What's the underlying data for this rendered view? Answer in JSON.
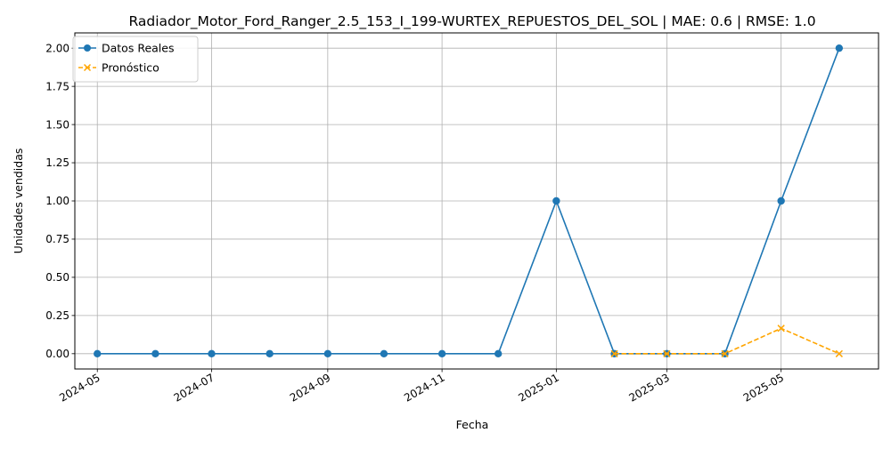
{
  "chart_data": {
    "type": "line",
    "title": "Radiador_Motor_Ford_Ranger_2.5_153_I_199-WURTEX_REPUESTOS_DEL_SOL | MAE: 0.6 | RMSE: 1.0",
    "xlabel": "Fecha",
    "ylabel": "Unidades vendidas",
    "x_type": "date",
    "xlim": [
      "2024-04-19",
      "2025-06-22"
    ],
    "ylim": [
      -0.1,
      2.1
    ],
    "x_ticks": [
      "2024-05-01",
      "2024-07-01",
      "2024-09-01",
      "2024-11-01",
      "2025-01-01",
      "2025-03-01",
      "2025-05-01"
    ],
    "x_tick_labels": [
      "2024-05",
      "2024-07",
      "2024-09",
      "2024-11",
      "2025-01",
      "2025-03",
      "2025-05"
    ],
    "y_ticks": [
      0,
      0.25,
      0.5,
      0.75,
      1.0,
      1.25,
      1.5,
      1.75,
      2.0
    ],
    "y_tick_labels": [
      "0.00",
      "0.25",
      "0.50",
      "0.75",
      "1.00",
      "1.25",
      "1.50",
      "1.75",
      "2.00"
    ],
    "grid": true,
    "legend_position": "top-left",
    "series": [
      {
        "name": "Datos Reales",
        "color": "#1f77b4",
        "line_style": "solid",
        "marker": "circle",
        "x": [
          "2024-05-01",
          "2024-06-01",
          "2024-07-01",
          "2024-08-01",
          "2024-09-01",
          "2024-10-01",
          "2024-11-01",
          "2024-12-01",
          "2025-01-01",
          "2025-02-01",
          "2025-03-01",
          "2025-04-01",
          "2025-05-01",
          "2025-06-01"
        ],
        "values": [
          0,
          0,
          0,
          0,
          0,
          0,
          0,
          0,
          1,
          0,
          0,
          0,
          1,
          2
        ]
      },
      {
        "name": "Pronóstico",
        "color": "#ffa500",
        "line_style": "dashed",
        "marker": "x",
        "x": [
          "2025-02-01",
          "2025-03-01",
          "2025-04-01",
          "2025-05-01",
          "2025-06-01"
        ],
        "values": [
          0,
          0,
          0,
          0.166,
          0
        ]
      }
    ]
  }
}
